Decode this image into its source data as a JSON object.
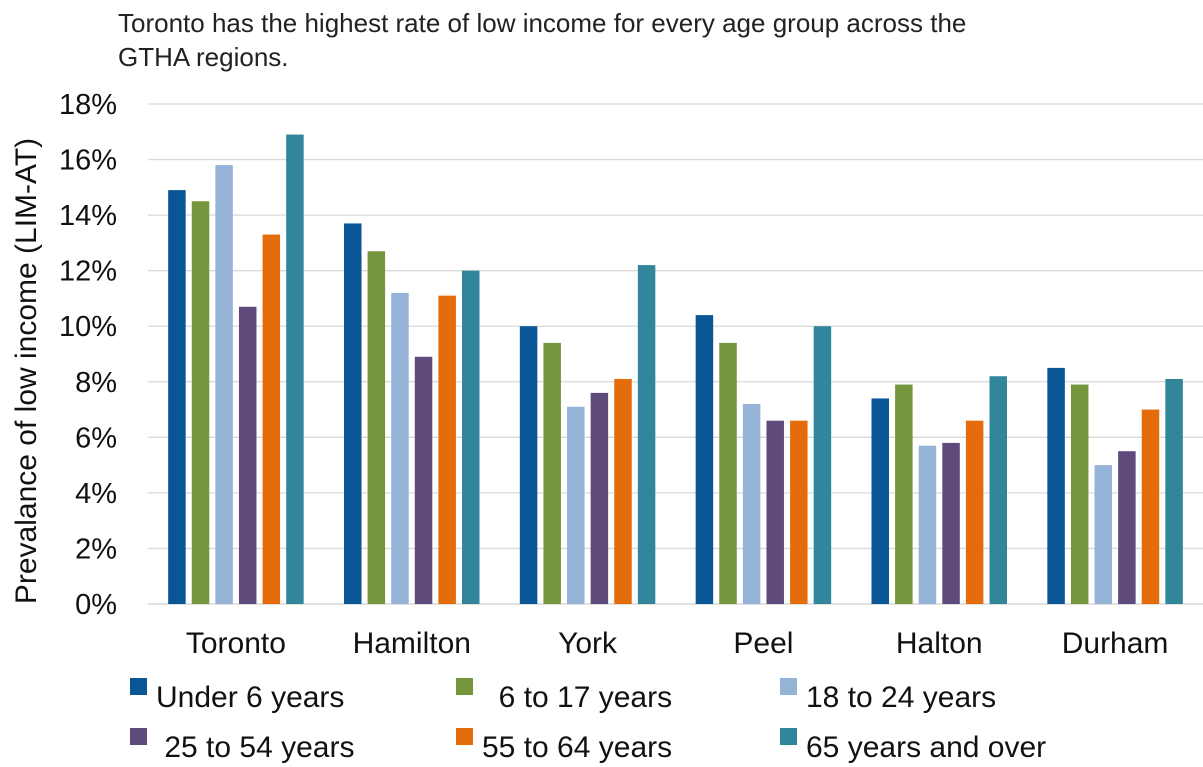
{
  "chart_data": {
    "type": "bar",
    "title": "Toronto has the highest rate of low income for every age group across the GTHA regions.",
    "title_lines": [
      "Toronto has the highest rate of low income for every age group across the",
      "GTHA regions."
    ],
    "xlabel": "",
    "ylabel": "Prevalance of low income (LIM-AT)",
    "ylim": [
      0,
      18
    ],
    "yticks": [
      "0%",
      "2%",
      "4%",
      "6%",
      "8%",
      "10%",
      "12%",
      "14%",
      "16%",
      "18%"
    ],
    "grid": true,
    "legend_position": "bottom",
    "categories": [
      "Toronto",
      "Hamilton",
      "York",
      "Peel",
      "Halton",
      "Durham"
    ],
    "series": [
      {
        "name": "Under 6 years",
        "legend_label": "Under 6 years",
        "color": "#0a5596",
        "values": [
          14.9,
          13.7,
          10.0,
          10.4,
          7.4,
          8.5
        ]
      },
      {
        "name": "6 to 17 years",
        "legend_label": "  6 to 17 years",
        "color": "#76963d",
        "values": [
          14.5,
          12.7,
          9.4,
          9.4,
          7.9,
          7.9
        ]
      },
      {
        "name": "18 to 24 years",
        "legend_label": "18 to 24 years",
        "color": "#95b3d7",
        "values": [
          15.8,
          11.2,
          7.1,
          7.2,
          5.7,
          5.0
        ]
      },
      {
        "name": "25 to 54 years",
        "legend_label": " 25 to 54 years",
        "color": "#5f4a7c",
        "values": [
          10.7,
          8.9,
          7.6,
          6.6,
          5.8,
          5.5
        ]
      },
      {
        "name": "55 to 64 years",
        "legend_label": "55 to 64 years",
        "color": "#e46c0a",
        "values": [
          13.3,
          11.1,
          8.1,
          6.6,
          6.6,
          7.0
        ]
      },
      {
        "name": "65 years and over",
        "legend_label": "65 years and over",
        "color": "#31869b",
        "values": [
          16.9,
          12.0,
          12.2,
          10.0,
          8.2,
          8.1
        ]
      }
    ]
  }
}
